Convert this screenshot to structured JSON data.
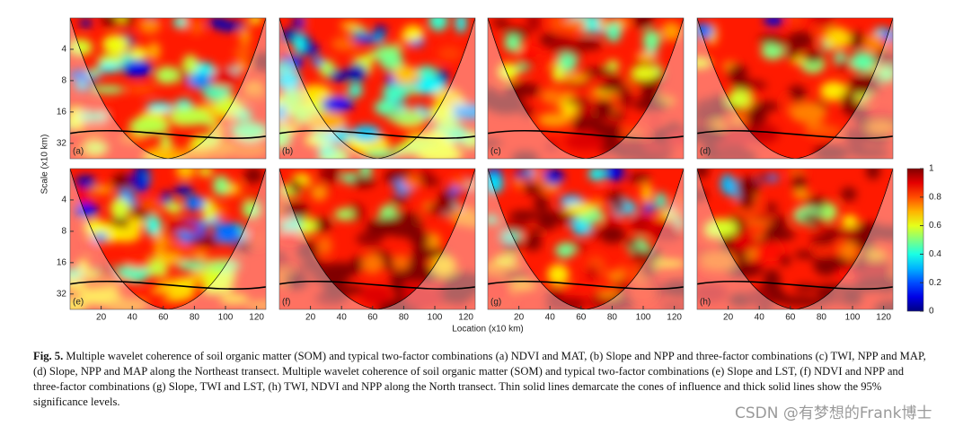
{
  "figure": {
    "panels": [
      {
        "label": "(a)"
      },
      {
        "label": "(b)"
      },
      {
        "label": "(c)"
      },
      {
        "label": "(d)"
      },
      {
        "label": "(e)"
      },
      {
        "label": "(f)"
      },
      {
        "label": "(g)"
      },
      {
        "label": "(h)"
      }
    ],
    "x_axis": {
      "label": "Location (x10 km)",
      "ticks": [
        20,
        40,
        60,
        80,
        100,
        120
      ],
      "lim": [
        0,
        126
      ]
    },
    "y_axis": {
      "label": "Scale (x10 km)",
      "ticks": [
        4,
        8,
        16,
        32
      ],
      "lim": [
        2,
        45
      ],
      "scale": "log"
    },
    "colorbar": {
      "ticks": [
        0,
        0.2,
        0.4,
        0.6,
        0.8,
        1
      ],
      "lim": [
        0,
        1
      ]
    }
  },
  "caption": {
    "label": "Fig. 5.",
    "text": "Multiple wavelet coherence of soil organic matter (SOM) and typical two-factor combinations (a) NDVI and MAT, (b) Slope and NPP and three-factor combinations (c) TWI, NPP and MAP, (d) Slope, NPP and MAP along the Northeast transect. Multiple wavelet coherence of soil organic matter (SOM) and typical two-factor combinations (e) Slope and LST, (f) NDVI and NPP and three-factor combinations (g) Slope, TWI and LST, (h) TWI, NDVI and NPP along the North transect. Thin solid lines demarcate the cones of influence and thick solid lines show the 95% significance levels."
  },
  "watermark": "CSDN @有梦想的Frank博士"
}
